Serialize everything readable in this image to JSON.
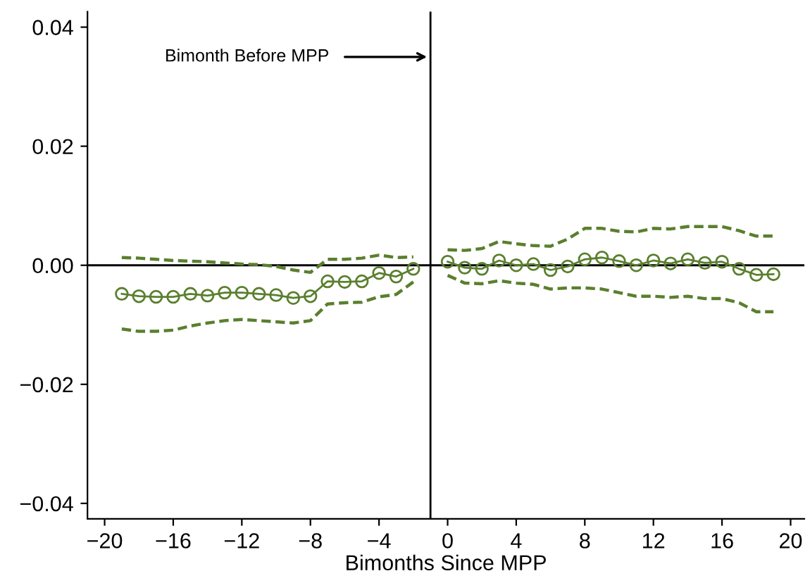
{
  "chart_data": {
    "type": "line",
    "xlabel": "Bimonths Since MPP",
    "xlim": [
      -21,
      20.8
    ],
    "ylim": [
      -0.0426,
      0.0426
    ],
    "xticks": [
      {
        "value": -20,
        "label": "−20"
      },
      {
        "value": -16,
        "label": "−16"
      },
      {
        "value": -12,
        "label": "−12"
      },
      {
        "value": -8,
        "label": "−8"
      },
      {
        "value": -4,
        "label": "−4"
      },
      0,
      4,
      8,
      12,
      16,
      20
    ],
    "yticks": [
      {
        "value": -0.04,
        "label": "−0.04"
      },
      {
        "value": -0.02,
        "label": "−0.02"
      },
      {
        "value": 0,
        "label": "0.00"
      },
      {
        "value": 0.02,
        "label": "0.02"
      },
      {
        "value": 0.04,
        "label": "0.04"
      }
    ],
    "grid": false,
    "legend": false,
    "marker": "circle",
    "line_style": "solid",
    "series": [
      {
        "color": "#5a7f2e",
        "x": [
          -19,
          -18,
          -17,
          -16,
          -15,
          -14,
          -13,
          -12,
          -11,
          -10,
          -9,
          -8,
          -7,
          -6,
          -5,
          -4,
          -3,
          -2
        ],
        "values": [
          -0.0048,
          -0.0052,
          -0.0053,
          -0.0053,
          -0.0048,
          -0.0051,
          -0.0046,
          -0.0046,
          -0.0048,
          -0.005,
          -0.0055,
          -0.0052,
          -0.0027,
          -0.0028,
          -0.0027,
          -0.0013,
          -0.0019,
          -0.0006
        ]
      },
      {
        "color": "#5a7f2e",
        "marker": "none",
        "line_style": "dashed",
        "x": [
          -19,
          -18,
          -17,
          -16,
          -15,
          -14,
          -13,
          -12,
          -11,
          -10,
          -9,
          -8,
          -7,
          -6,
          -5,
          -4,
          -3,
          -2
        ],
        "values": [
          0.0013,
          0.0012,
          0.001,
          0.0008,
          0.0007,
          0.0006,
          0.0004,
          0.0002,
          0.0001,
          -0.0002,
          -0.0008,
          -0.0012,
          0.001,
          0.001,
          0.0012,
          0.0017,
          0.0013,
          0.0014
        ]
      },
      {
        "color": "#5a7f2e",
        "marker": "none",
        "line_style": "dashed",
        "x": [
          -19,
          -18,
          -17,
          -16,
          -15,
          -14,
          -13,
          -12,
          -11,
          -10,
          -9,
          -8,
          -7,
          -6,
          -5,
          -4,
          -3,
          -2
        ],
        "values": [
          -0.0107,
          -0.0111,
          -0.0111,
          -0.0109,
          -0.0102,
          -0.0097,
          -0.0093,
          -0.0091,
          -0.0093,
          -0.0095,
          -0.0097,
          -0.0093,
          -0.0065,
          -0.0063,
          -0.0062,
          -0.0053,
          -0.0049,
          -0.0028
        ]
      },
      {
        "color": "#5a7f2e",
        "x": [
          0,
          1,
          2,
          3,
          4,
          5,
          6,
          7,
          8,
          9,
          10,
          11,
          12,
          13,
          14,
          15,
          16,
          17,
          18,
          19
        ],
        "values": [
          0.0006,
          -0.0004,
          -0.0006,
          0.0008,
          0,
          0.0002,
          -0.0008,
          -0.0002,
          0.001,
          0.0013,
          0.0007,
          0,
          0.0008,
          0.0003,
          0.001,
          0.0004,
          0.0006,
          -0.0006,
          -0.0016,
          -0.0015
        ]
      },
      {
        "color": "#5a7f2e",
        "marker": "none",
        "line_style": "dashed",
        "x": [
          0,
          1,
          2,
          3,
          4,
          5,
          6,
          7,
          8,
          9,
          10,
          11,
          12,
          13,
          14,
          15,
          16,
          17,
          18,
          19
        ],
        "values": [
          0.0026,
          0.0025,
          0.0028,
          0.004,
          0.0036,
          0.0033,
          0.0032,
          0.0044,
          0.0062,
          0.0062,
          0.0057,
          0.0056,
          0.0062,
          0.0061,
          0.0065,
          0.0065,
          0.0065,
          0.0058,
          0.0049,
          0.0049
        ]
      },
      {
        "color": "#5a7f2e",
        "marker": "none",
        "line_style": "dashed",
        "x": [
          0,
          1,
          2,
          3,
          4,
          5,
          6,
          7,
          8,
          9,
          10,
          11,
          12,
          13,
          14,
          15,
          16,
          17,
          18,
          19
        ],
        "values": [
          -0.0017,
          -0.003,
          -0.0031,
          -0.0026,
          -0.003,
          -0.0032,
          -0.004,
          -0.0038,
          -0.0038,
          -0.004,
          -0.0046,
          -0.0052,
          -0.0052,
          -0.0054,
          -0.0052,
          -0.0056,
          -0.0056,
          -0.0063,
          -0.0078,
          -0.0078
        ]
      }
    ],
    "ref_lines": [
      {
        "axis": "x",
        "value": -1,
        "color": "#000000"
      },
      {
        "axis": "y",
        "value": 0,
        "color": "#000000"
      }
    ],
    "annotations": [
      {
        "text": "Bimonth Before MPP",
        "x": -1.2,
        "y": 0.035
      }
    ]
  }
}
